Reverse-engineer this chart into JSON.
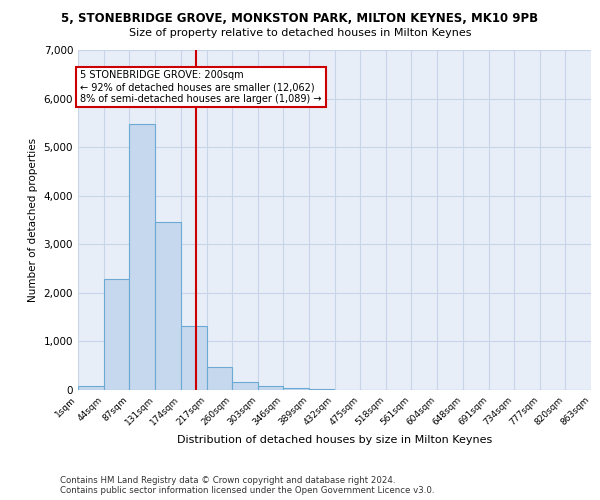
{
  "title1": "5, STONEBRIDGE GROVE, MONKSTON PARK, MILTON KEYNES, MK10 9PB",
  "title2": "Size of property relative to detached houses in Milton Keynes",
  "xlabel": "Distribution of detached houses by size in Milton Keynes",
  "ylabel": "Number of detached properties",
  "footnote1": "Contains HM Land Registry data © Crown copyright and database right 2024.",
  "footnote2": "Contains public sector information licensed under the Open Government Licence v3.0.",
  "bar_color": "#c5d8ed",
  "bar_edge_color": "#6aaad4",
  "grid_color": "#c8d4e8",
  "background_color": "#e8eef8",
  "vline_color": "#cc0000",
  "vline_x": 200,
  "annotation_text": "5 STONEBRIDGE GROVE: 200sqm\n← 92% of detached houses are smaller (12,062)\n8% of semi-detached houses are larger (1,089) →",
  "annotation_box_color": "#ffffff",
  "annotation_box_edge": "#cc0000",
  "bin_edges": [
    1,
    44,
    87,
    131,
    174,
    217,
    260,
    303,
    346,
    389,
    432,
    475,
    518,
    561,
    604,
    648,
    691,
    734,
    777,
    820,
    863
  ],
  "bar_heights": [
    80,
    2280,
    5470,
    3450,
    1320,
    470,
    155,
    90,
    50,
    30,
    0,
    0,
    0,
    0,
    0,
    0,
    0,
    0,
    0,
    0
  ],
  "ylim": [
    0,
    7000
  ],
  "yticks": [
    0,
    1000,
    2000,
    3000,
    4000,
    5000,
    6000,
    7000
  ]
}
